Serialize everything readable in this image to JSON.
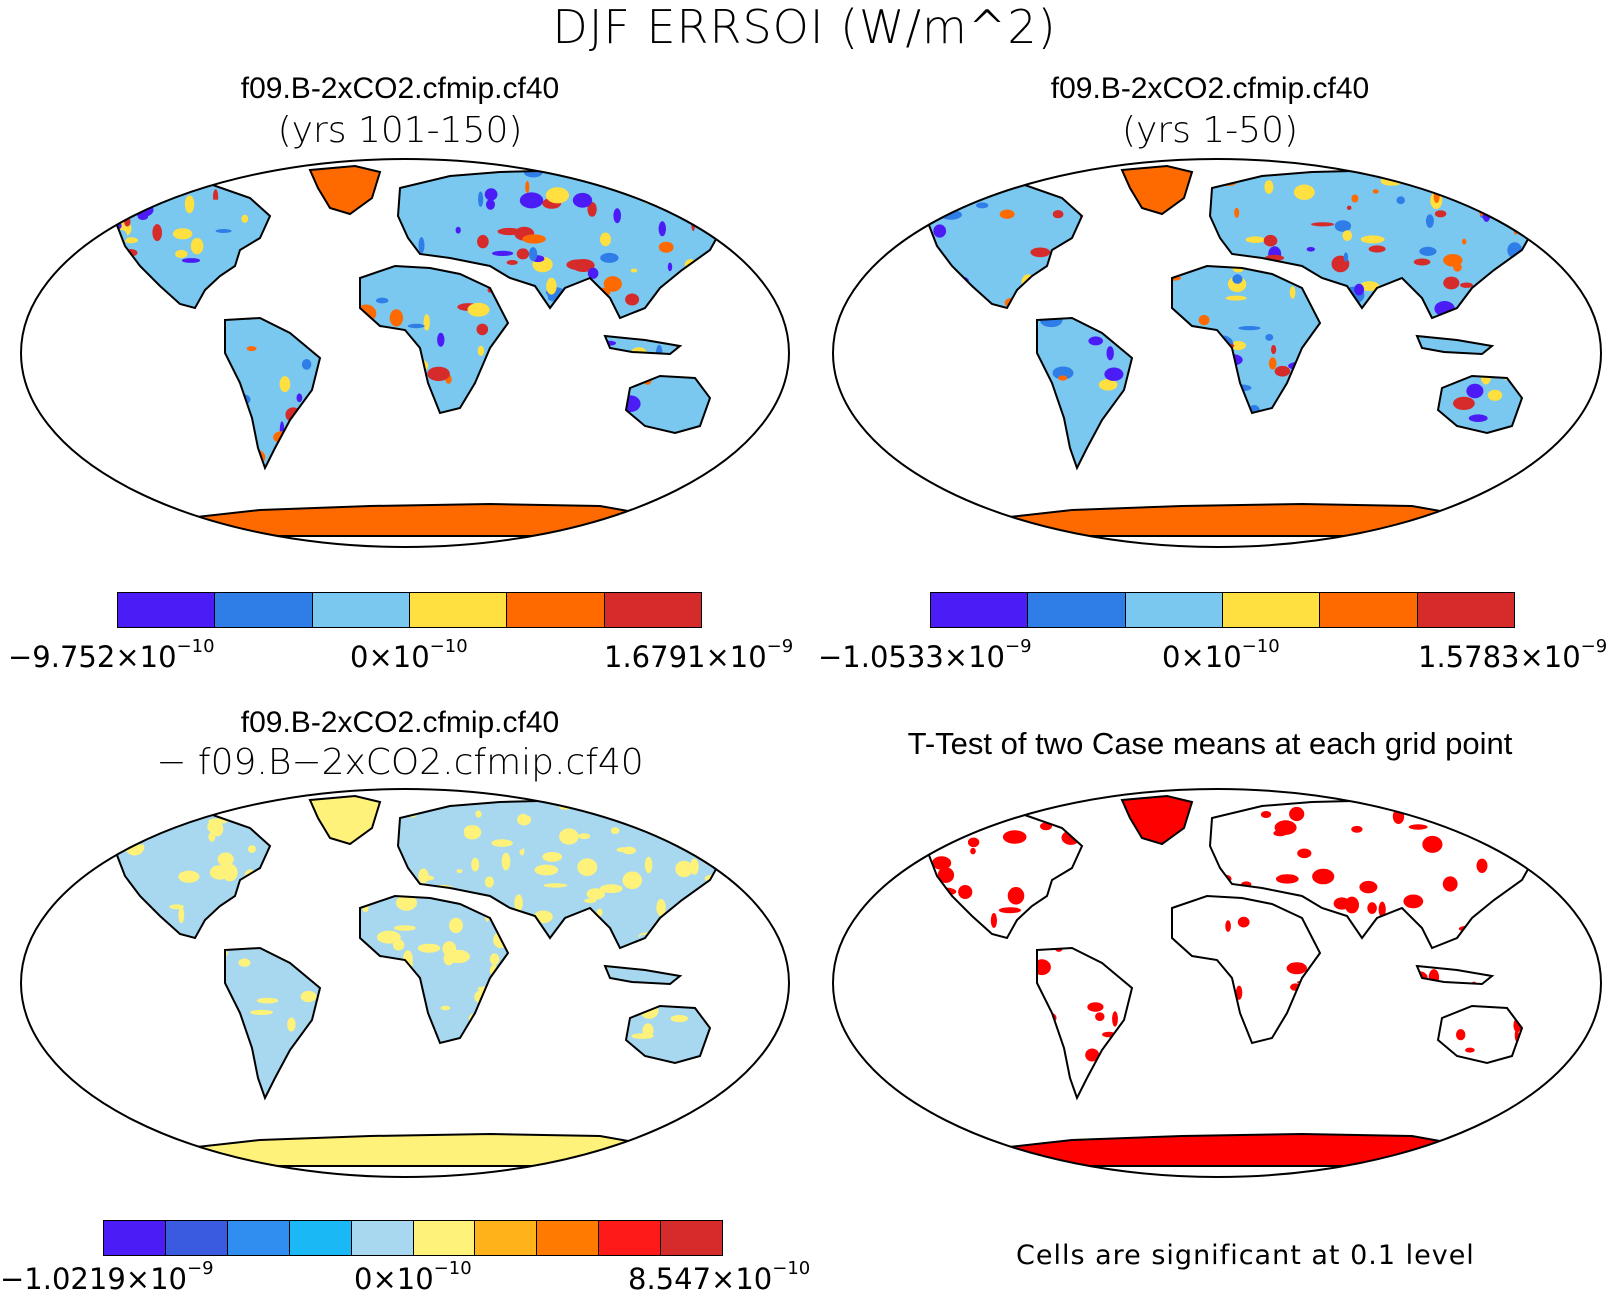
{
  "figure": {
    "title": "DJF ERRSOI (W/m^2)"
  },
  "panels": [
    {
      "title": "f09.B-2xCO2.cfmip.cf40",
      "subtitle": "(yrs 101-150)",
      "colorbar": {
        "colors": [
          "#4b1cf5",
          "#2f7ee8",
          "#7ac7ef",
          "#ffe040",
          "#ff6a00",
          "#d62b2b"
        ],
        "min_label": "−9.752×10",
        "min_exp": "−10",
        "mid_label": "0×10",
        "mid_exp": "−10",
        "max_label": "1.6791×10",
        "max_exp": "−9"
      }
    },
    {
      "title": "f09.B-2xCO2.cfmip.cf40",
      "subtitle": "(yrs 1-50)",
      "colorbar": {
        "colors": [
          "#4b1cf5",
          "#2f7ee8",
          "#7ac7ef",
          "#ffe040",
          "#ff6a00",
          "#d62b2b"
        ],
        "min_label": "−1.0533×10",
        "min_exp": "−9",
        "mid_label": "0×10",
        "mid_exp": "−10",
        "max_label": "1.5783×10",
        "max_exp": "−9"
      }
    },
    {
      "title": "f09.B-2xCO2.cfmip.cf40",
      "subtitle": "− f09.B−2xCO2.cfmip.cf40",
      "colorbar": {
        "colors": [
          "#4b1cf5",
          "#3a5be0",
          "#2f8ef0",
          "#1ab8f5",
          "#a8d8f0",
          "#fff27a",
          "#ffb21a",
          "#ff7a00",
          "#ff1a1a",
          "#d62b2b"
        ],
        "min_label": "−1.0219×10",
        "min_exp": "−9",
        "mid_label": "0×10",
        "mid_exp": "−10",
        "max_label": "8.547×10",
        "max_exp": "−10"
      }
    },
    {
      "title": "T-Test of two Case means at each grid point",
      "note": "Cells are significant at 0.1 level",
      "fill_color": "#ff0000"
    }
  ]
}
